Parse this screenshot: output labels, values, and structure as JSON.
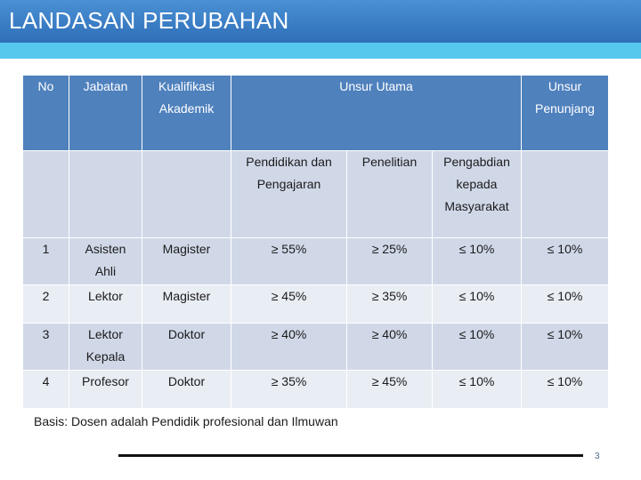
{
  "title": "LANDASAN PERUBAHAN",
  "table": {
    "header": {
      "no": "No",
      "jabatan": "Jabatan",
      "kualifikasi": "Kualifikasi Akademik",
      "unsur_utama": "Unsur Utama",
      "unsur_penunjang": "Unsur Penunjang"
    },
    "subheader": {
      "pendidikan": "Pendidikan dan Pengajaran",
      "penelitian": "Penelitian",
      "pengabdian": "Pengabdian kepada Masyarakat"
    },
    "rows": [
      {
        "no": "1",
        "jabatan": "Asisten Ahli",
        "kualifikasi": "Magister",
        "pendidikan": "≥ 55%",
        "penelitian": "≥ 25%",
        "pengabdian": "≤ 10%",
        "penunjang": "≤ 10%"
      },
      {
        "no": "2",
        "jabatan": "Lektor",
        "kualifikasi": "Magister",
        "pendidikan": "≥ 45%",
        "penelitian": "≥ 35%",
        "pengabdian": "≤ 10%",
        "penunjang": "≤ 10%"
      },
      {
        "no": "3",
        "jabatan": "Lektor Kepala",
        "kualifikasi": "Doktor",
        "pendidikan": "≥ 40%",
        "penelitian": "≥ 40%",
        "pengabdian": "≤ 10%",
        "penunjang": "≤ 10%"
      },
      {
        "no": "4",
        "jabatan": "Profesor",
        "kualifikasi": "Doktor",
        "pendidikan": "≥ 35%",
        "penelitian": "≥ 45%",
        "pengabdian": "≤ 10%",
        "penunjang": "≤ 10%"
      }
    ]
  },
  "footnote": "Basis: Dosen adalah Pendidik profesional dan Ilmuwan",
  "page_number": "3",
  "colors": {
    "title_bar": "#2f6fb8",
    "title_stripe": "#56c8ee",
    "header_fill": "#4f81bd",
    "band_dark": "#d0d8e8",
    "band_light": "#e9edf4"
  }
}
